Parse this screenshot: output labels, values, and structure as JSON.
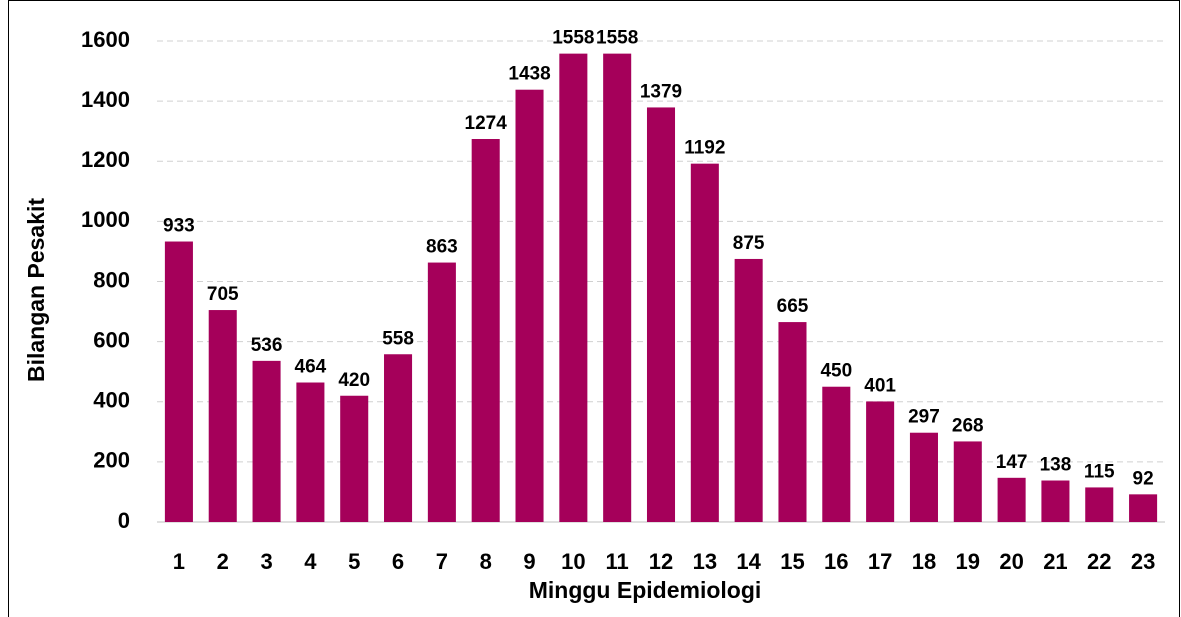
{
  "chart_data": {
    "type": "bar",
    "x_label": "Minggu Epidemiologi",
    "y_label": "Bilangan Pesakit",
    "categories": [
      "1",
      "2",
      "3",
      "4",
      "5",
      "6",
      "7",
      "8",
      "9",
      "10",
      "11",
      "12",
      "13",
      "14",
      "15",
      "16",
      "17",
      "18",
      "19",
      "20",
      "21",
      "22",
      "23"
    ],
    "values": [
      933,
      705,
      536,
      464,
      420,
      558,
      863,
      1274,
      1438,
      1558,
      1558,
      1379,
      1192,
      875,
      665,
      450,
      401,
      297,
      268,
      147,
      138,
      115,
      92
    ],
    "color": "#a5005a",
    "ylim": [
      0,
      1600
    ],
    "yticks": [
      0,
      200,
      400,
      600,
      800,
      1000,
      1200,
      1400,
      1600
    ],
    "grid": true
  }
}
